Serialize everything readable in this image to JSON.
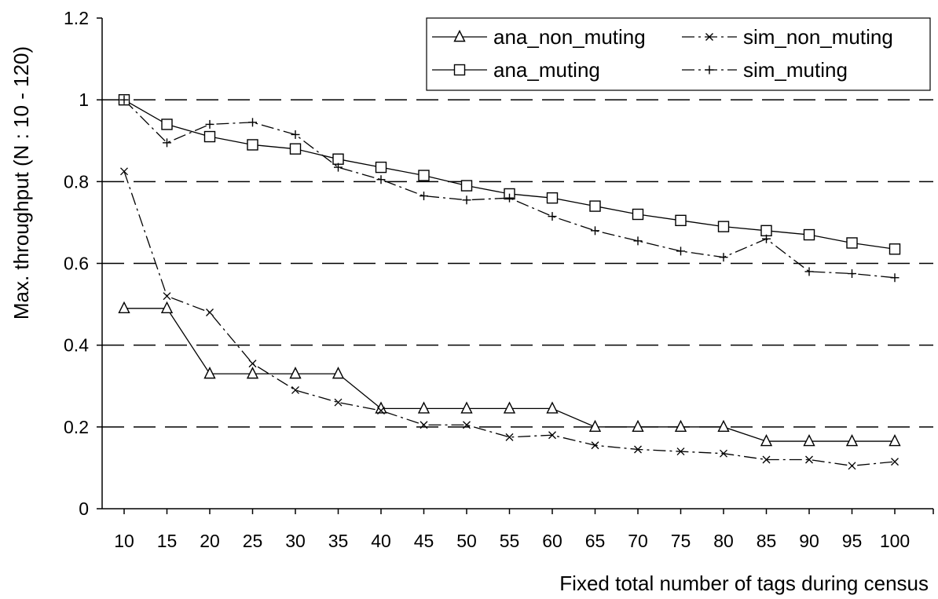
{
  "chart_data": {
    "type": "line",
    "xlabel": "Fixed total number of tags during census",
    "ylabel": "Max. throughput (N : 10 - 120)",
    "ylim": [
      0,
      1.2
    ],
    "yticks": [
      "0",
      "0.2",
      "0.4",
      "0.6",
      "0.8",
      "1",
      "1.2"
    ],
    "categories": [
      "10",
      "15",
      "20",
      "25",
      "30",
      "35",
      "40",
      "45",
      "50",
      "55",
      "60",
      "65",
      "70",
      "75",
      "80",
      "85",
      "90",
      "95",
      "100"
    ],
    "grid": "horizontal dashed",
    "legend_position": "top-right",
    "series": [
      {
        "name": "ana_non_muting",
        "marker": "triangle",
        "dash": "solid",
        "values": [
          0.49,
          0.49,
          0.33,
          0.33,
          0.33,
          0.33,
          0.245,
          0.245,
          0.245,
          0.245,
          0.245,
          0.2,
          0.2,
          0.2,
          0.2,
          0.165,
          0.165,
          0.165,
          0.165
        ]
      },
      {
        "name": "sim_non_muting",
        "marker": "x",
        "dash": "dashdot",
        "values": [
          0.825,
          0.52,
          0.48,
          0.355,
          0.29,
          0.26,
          0.24,
          0.205,
          0.205,
          0.175,
          0.18,
          0.155,
          0.145,
          0.14,
          0.135,
          0.12,
          0.12,
          0.105,
          0.115
        ]
      },
      {
        "name": "ana_muting",
        "marker": "square",
        "dash": "solid",
        "values": [
          1.0,
          0.94,
          0.91,
          0.89,
          0.88,
          0.855,
          0.835,
          0.815,
          0.79,
          0.77,
          0.76,
          0.74,
          0.72,
          0.705,
          0.69,
          0.68,
          0.67,
          0.65,
          0.635
        ]
      },
      {
        "name": "sim_muting",
        "marker": "plus",
        "dash": "dashdot",
        "values": [
          1.0,
          0.895,
          0.94,
          0.945,
          0.915,
          0.835,
          0.805,
          0.765,
          0.755,
          0.76,
          0.715,
          0.68,
          0.655,
          0.63,
          0.615,
          0.66,
          0.58,
          0.575,
          0.565
        ]
      }
    ]
  }
}
